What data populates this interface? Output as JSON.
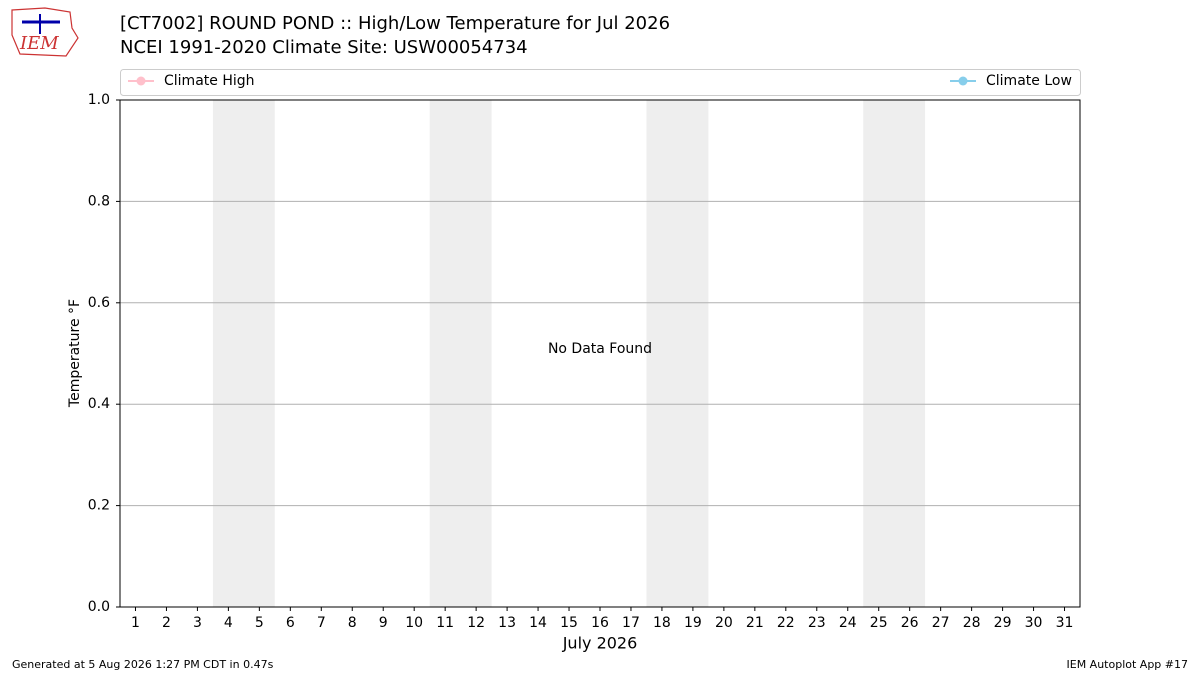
{
  "logo_text": "IEM",
  "chart_data": {
    "type": "line",
    "title": "[CT7002] ROUND POND :: High/Low Temperature for Jul 2026",
    "subtitle": "NCEI 1991-2020 Climate Site: USW00054734",
    "xlabel": "July 2026",
    "ylabel": "Temperature °F",
    "annotation": "No Data Found",
    "categories": [
      "1",
      "2",
      "3",
      "4",
      "5",
      "6",
      "7",
      "8",
      "9",
      "10",
      "11",
      "12",
      "13",
      "14",
      "15",
      "16",
      "17",
      "18",
      "19",
      "20",
      "21",
      "22",
      "23",
      "24",
      "25",
      "26",
      "27",
      "28",
      "29",
      "30",
      "31"
    ],
    "series": [
      {
        "name": "Climate High",
        "color": "#ffc0cb",
        "values": [
          null,
          null,
          null,
          null,
          null,
          null,
          null,
          null,
          null,
          null,
          null,
          null,
          null,
          null,
          null,
          null,
          null,
          null,
          null,
          null,
          null,
          null,
          null,
          null,
          null,
          null,
          null,
          null,
          null,
          null,
          null
        ]
      },
      {
        "name": "Climate Low",
        "color": "#87ceeb",
        "values": [
          null,
          null,
          null,
          null,
          null,
          null,
          null,
          null,
          null,
          null,
          null,
          null,
          null,
          null,
          null,
          null,
          null,
          null,
          null,
          null,
          null,
          null,
          null,
          null,
          null,
          null,
          null,
          null,
          null,
          null,
          null
        ]
      }
    ],
    "ylim": [
      0,
      1
    ],
    "yticks": [
      {
        "value": 0,
        "label": "0.0"
      },
      0.2,
      0.4,
      0.6,
      0.8,
      {
        "value": 1,
        "label": "1.0"
      }
    ],
    "grid": true,
    "footer_left": "Generated at 5 Aug 2026 1:27 PM CDT in 0.47s",
    "footer_right": "IEM Autoplot App #17"
  }
}
